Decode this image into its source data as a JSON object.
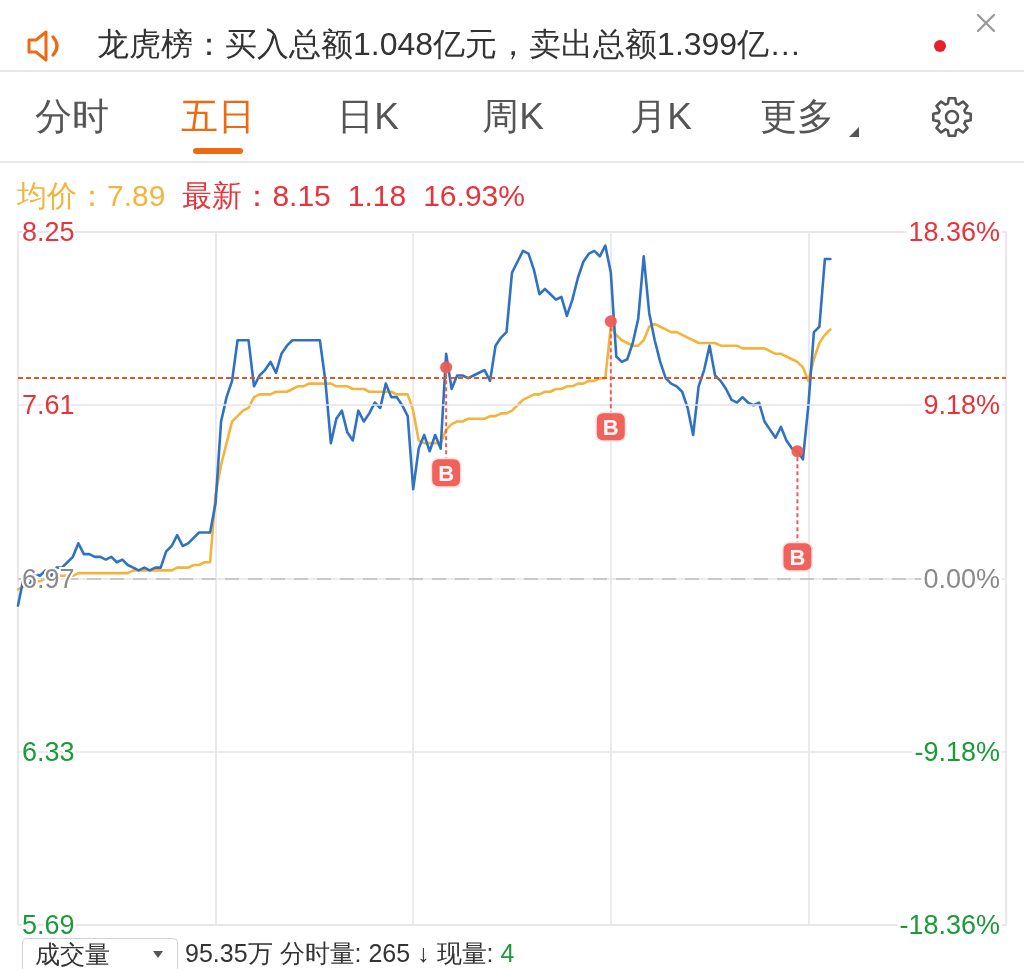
{
  "chart_data": {
    "type": "line",
    "annotations": [
      "龙虎榜：买入总额1.048亿元，卖出总额1.399亿…",
      "分时",
      "五日",
      "日K",
      "周K",
      "月K",
      "更多",
      "均价：7.89",
      "最新：8.15",
      "1.18",
      "16.93%",
      "成交量",
      "95.35万 分时量: 265 ↓ 现量:",
      "4"
    ],
    "categories": [
      null,
      null,
      null,
      null,
      null,
      null,
      null,
      null,
      null,
      null,
      null,
      null,
      null,
      null,
      null,
      null,
      null,
      null,
      null,
      null,
      null,
      null,
      null,
      null,
      null,
      null,
      null,
      null,
      null,
      null,
      null,
      null,
      null,
      null,
      null,
      null,
      null,
      null,
      null,
      null,
      null,
      null,
      null,
      null,
      null,
      null,
      null,
      null,
      null,
      null,
      null,
      null,
      null,
      null,
      null,
      null,
      null,
      null,
      null,
      null,
      null,
      null,
      null,
      null,
      null,
      null,
      null,
      null,
      null,
      null,
      null,
      null,
      null,
      null,
      null,
      null,
      null,
      null,
      null,
      null,
      null,
      null,
      null,
      null,
      null,
      null,
      null,
      null,
      null,
      null,
      null,
      null,
      null,
      null,
      null,
      null,
      null,
      null,
      null,
      null,
      null,
      null,
      null,
      null,
      null,
      null,
      null,
      null,
      null,
      null,
      null,
      null,
      null,
      null,
      null,
      null,
      null,
      null,
      null,
      null,
      null,
      null,
      null,
      null,
      null,
      null,
      null,
      null,
      null,
      null,
      null,
      null,
      null,
      null,
      null,
      null,
      null,
      null,
      null,
      null,
      null,
      null,
      null,
      null,
      null,
      null,
      null,
      null,
      null,
      null,
      null,
      null,
      null,
      null,
      null,
      null,
      null,
      null,
      null,
      null,
      null,
      null,
      null,
      null,
      null,
      null,
      null,
      null,
      null,
      null,
      null,
      null,
      null,
      null,
      null,
      null,
      null,
      null,
      null,
      null,
      null
    ],
    "series": [
      {
        "color": "#f4b43c",
        "values": [
          6.93,
          6.94,
          6.95,
          6.96,
          6.96,
          6.97,
          6.97,
          6.98,
          6.98,
          6.98,
          6.98,
          6.99,
          6.99,
          6.99,
          6.99,
          6.99,
          6.99,
          6.99,
          6.99,
          6.99,
          6.99,
          7.0,
          7.0,
          7.0,
          7.0,
          7.0,
          7.0,
          7.0,
          7.0,
          7.01,
          7.01,
          7.01,
          7.02,
          7.02,
          7.03,
          7.03,
          7.28,
          7.39,
          7.47,
          7.55,
          7.57,
          7.59,
          7.6,
          7.64,
          7.65,
          7.65,
          7.65,
          7.66,
          7.66,
          7.66,
          7.67,
          7.68,
          7.68,
          7.69,
          7.69,
          7.69,
          7.69,
          7.69,
          7.68,
          7.68,
          7.68,
          7.67,
          7.67,
          7.67,
          7.66,
          7.66,
          7.66,
          7.66,
          7.66,
          7.65,
          7.65,
          7.65,
          7.59,
          7.48,
          7.47,
          7.47,
          7.47,
          7.47,
          7.52,
          7.54,
          7.55,
          7.55,
          7.56,
          7.56,
          7.56,
          7.56,
          7.57,
          7.57,
          7.58,
          7.58,
          7.59,
          7.61,
          7.63,
          7.64,
          7.65,
          7.65,
          7.66,
          7.66,
          7.67,
          7.67,
          7.68,
          7.68,
          7.69,
          7.69,
          7.7,
          7.7,
          7.71,
          7.71,
          7.9,
          7.87,
          7.85,
          7.84,
          7.83,
          7.83,
          7.85,
          7.9,
          7.91,
          7.9,
          7.89,
          7.88,
          7.88,
          7.87,
          7.86,
          7.85,
          7.84,
          7.84,
          7.84,
          7.84,
          7.83,
          7.83,
          7.83,
          7.83,
          7.82,
          7.82,
          7.82,
          7.82,
          7.82,
          7.81,
          7.8,
          7.8,
          7.79,
          7.78,
          7.77,
          7.75,
          7.7,
          7.78,
          7.84,
          7.87,
          7.89,
          null,
          null,
          null,
          null,
          null,
          null,
          null,
          null,
          null,
          null,
          null,
          null,
          null,
          null,
          null,
          null,
          null,
          null,
          null,
          null,
          null,
          null,
          null,
          null,
          null,
          null,
          null,
          null,
          null,
          null,
          null,
          null
        ]
      },
      {
        "color": "#2f72c4",
        "values": [
          6.87,
          6.97,
          6.94,
          6.99,
          6.98,
          7.0,
          6.98,
          7.01,
          7.01,
          7.03,
          7.05,
          7.1,
          7.06,
          7.06,
          7.05,
          7.05,
          7.04,
          7.05,
          7.03,
          7.04,
          7.02,
          7.01,
          7.0,
          7.01,
          7.0,
          7.01,
          7.01,
          7.07,
          7.09,
          7.13,
          7.09,
          7.1,
          7.12,
          7.14,
          7.14,
          7.14,
          7.25,
          7.55,
          7.64,
          7.7,
          7.85,
          7.85,
          7.85,
          7.68,
          7.72,
          7.74,
          7.77,
          7.73,
          7.8,
          7.83,
          7.85,
          7.85,
          7.85,
          7.85,
          7.85,
          7.85,
          7.7,
          7.47,
          7.56,
          7.59,
          7.51,
          7.48,
          7.59,
          7.55,
          7.58,
          7.62,
          7.6,
          7.69,
          7.64,
          7.64,
          7.61,
          7.57,
          7.3,
          7.45,
          7.5,
          7.44,
          7.5,
          7.45,
          7.8,
          7.67,
          7.72,
          7.72,
          7.71,
          7.72,
          7.73,
          7.74,
          7.7,
          7.83,
          7.86,
          7.88,
          8.1,
          8.14,
          8.18,
          8.17,
          8.11,
          8.02,
          8.04,
          8.02,
          8.0,
          8.01,
          7.94,
          8.0,
          8.08,
          8.14,
          8.17,
          8.18,
          8.16,
          8.2,
          8.1,
          7.79,
          7.77,
          7.78,
          7.84,
          7.93,
          8.16,
          7.95,
          7.85,
          7.77,
          7.71,
          7.69,
          7.68,
          7.66,
          7.6,
          7.5,
          7.68,
          7.74,
          7.83,
          7.72,
          7.7,
          7.67,
          7.63,
          7.62,
          7.64,
          7.62,
          7.61,
          7.62,
          7.55,
          7.52,
          7.49,
          7.53,
          7.48,
          7.45,
          7.44,
          7.41,
          7.61,
          7.88,
          7.9,
          8.15,
          8.15,
          null,
          null,
          null,
          null,
          null,
          null,
          null,
          null,
          null,
          null,
          null,
          null,
          null,
          null,
          null,
          null,
          null,
          null,
          null,
          null,
          null,
          null,
          null,
          null,
          null,
          null,
          null,
          null,
          null,
          null,
          null,
          null
        ]
      },
      {
        "type": "scatter",
        "marker": "circle",
        "color": "#ef5b53",
        "values": [
          null,
          null,
          null,
          null,
          null,
          null,
          null,
          null,
          null,
          null,
          null,
          null,
          null,
          null,
          null,
          null,
          null,
          null,
          null,
          null,
          null,
          null,
          null,
          null,
          null,
          null,
          null,
          null,
          null,
          null,
          null,
          null,
          null,
          null,
          null,
          null,
          null,
          null,
          null,
          null,
          null,
          null,
          null,
          null,
          null,
          null,
          null,
          null,
          null,
          null,
          null,
          null,
          null,
          null,
          null,
          null,
          null,
          null,
          null,
          null,
          null,
          null,
          null,
          null,
          null,
          null,
          null,
          null,
          null,
          null,
          null,
          null,
          null,
          null,
          null,
          null,
          null,
          null,
          7.75,
          null,
          null,
          null,
          null,
          null,
          null,
          null,
          null,
          null,
          null,
          null,
          null,
          null,
          null,
          null,
          null,
          null,
          null,
          null,
          null,
          null,
          null,
          null,
          null,
          null,
          null,
          null,
          null,
          null,
          7.92,
          null,
          null,
          null,
          null,
          null,
          null,
          null,
          null,
          null,
          null,
          null,
          null,
          null,
          null,
          null,
          null,
          null,
          null,
          null,
          null,
          null,
          null,
          null,
          null,
          null,
          null,
          null,
          null,
          null,
          null,
          null,
          null,
          null,
          7.44,
          null,
          null,
          null,
          null,
          null,
          null,
          null,
          null,
          null,
          null,
          null,
          null,
          null,
          null,
          null,
          null,
          null,
          null,
          null,
          null,
          null,
          null,
          null,
          null,
          null,
          null,
          null,
          null,
          null,
          null,
          null,
          null,
          null,
          null,
          null,
          null,
          null,
          null
        ],
        "value_labels": [
          null,
          null,
          null,
          null,
          null,
          null,
          null,
          null,
          null,
          null,
          null,
          null,
          null,
          null,
          null,
          null,
          null,
          null,
          null,
          null,
          null,
          null,
          null,
          null,
          null,
          null,
          null,
          null,
          null,
          null,
          null,
          null,
          null,
          null,
          null,
          null,
          null,
          null,
          null,
          null,
          null,
          null,
          null,
          null,
          null,
          null,
          null,
          null,
          null,
          null,
          null,
          null,
          null,
          null,
          null,
          null,
          null,
          null,
          null,
          null,
          null,
          null,
          null,
          null,
          null,
          null,
          null,
          null,
          null,
          null,
          null,
          null,
          null,
          null,
          null,
          null,
          null,
          null,
          "B",
          null,
          null,
          null,
          null,
          null,
          null,
          null,
          null,
          null,
          null,
          null,
          null,
          null,
          null,
          null,
          null,
          null,
          null,
          null,
          null,
          null,
          null,
          null,
          null,
          null,
          null,
          null,
          null,
          null,
          "B",
          null,
          null,
          null,
          null,
          null,
          null,
          null,
          null,
          null,
          null,
          null,
          null,
          null,
          null,
          null,
          null,
          null,
          null,
          null,
          null,
          null,
          null,
          null,
          null,
          null,
          null,
          null,
          null,
          null,
          null,
          null,
          null,
          null,
          "B",
          null,
          null,
          null,
          null,
          null,
          null,
          null,
          null,
          null,
          null,
          null,
          null,
          null,
          null,
          null,
          null,
          null,
          null,
          null,
          null,
          null,
          null,
          null,
          null,
          null,
          null,
          null,
          null,
          null,
          null,
          null,
          null,
          null,
          null,
          null,
          null,
          null,
          null
        ]
      }
    ],
    "ylim": [
      5.69,
      8.25
    ],
    "yticks": [
      5.69,
      6.33,
      6.97,
      7.61,
      8.25
    ],
    "y2lim": [
      -18.36,
      18.36
    ],
    "y2ticks": [
      {
        "value": -18.36,
        "label": "-18.36%"
      },
      {
        "value": -9.18,
        "label": "-9.18%"
      },
      {
        "value": 0,
        "label": "0.00%"
      },
      {
        "value": 9.18,
        "label": "9.18%"
      },
      {
        "value": 18.36,
        "label": "18.36%"
      }
    ],
    "ref_lines": [
      {
        "axis": "y",
        "value": 6.97,
        "color": "#7a7a7a",
        "line_style": "dashed"
      },
      {
        "axis": "y",
        "value": 7.71,
        "color": "#e9541c",
        "line_style": "dotted"
      }
    ],
    "grid": true
  }
}
